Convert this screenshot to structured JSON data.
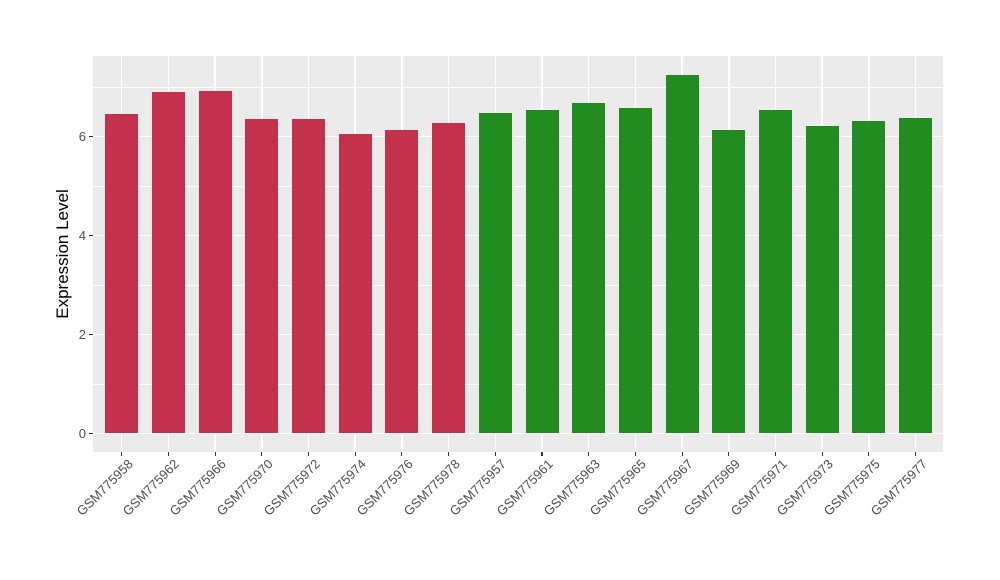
{
  "figure": {
    "background": "#FFFFFF",
    "panel_background": "#EBEBEB",
    "grid_color": "#FFFFFF",
    "axis_text_color": "#4D4D4D",
    "axis_title_color": "#000000",
    "tick_mark_color": "#333333"
  },
  "chart_data": {
    "type": "bar",
    "title": "",
    "xlabel": "",
    "ylabel": "Expression Level",
    "ylim": [
      0,
      7.64
    ],
    "yticks": [
      0,
      2,
      4,
      6
    ],
    "yticks_minor": [
      1,
      3,
      5,
      7
    ],
    "grid": "major and minor white gridlines on gray panel",
    "legend_position": "none",
    "bar_colors": {
      "red_group": "#C3314C",
      "green_group": "#238C20"
    },
    "bars": [
      {
        "label": "GSM775958",
        "value": 6.45,
        "color": "#C3314C"
      },
      {
        "label": "GSM775962",
        "value": 6.9,
        "color": "#C3314C"
      },
      {
        "label": "GSM775966",
        "value": 6.92,
        "color": "#C3314C"
      },
      {
        "label": "GSM775970",
        "value": 6.36,
        "color": "#C3314C"
      },
      {
        "label": "GSM775972",
        "value": 6.36,
        "color": "#C3314C"
      },
      {
        "label": "GSM775974",
        "value": 6.06,
        "color": "#C3314C"
      },
      {
        "label": "GSM775976",
        "value": 6.14,
        "color": "#C3314C"
      },
      {
        "label": "GSM775978",
        "value": 6.27,
        "color": "#C3314C"
      },
      {
        "label": "GSM775957",
        "value": 6.48,
        "color": "#238C20"
      },
      {
        "label": "GSM775961",
        "value": 6.54,
        "color": "#238C20"
      },
      {
        "label": "GSM775963",
        "value": 6.67,
        "color": "#238C20"
      },
      {
        "label": "GSM775965",
        "value": 6.58,
        "color": "#238C20"
      },
      {
        "label": "GSM775967",
        "value": 7.24,
        "color": "#238C20"
      },
      {
        "label": "GSM775969",
        "value": 6.13,
        "color": "#238C20"
      },
      {
        "label": "GSM775971",
        "value": 6.53,
        "color": "#238C20"
      },
      {
        "label": "GSM775973",
        "value": 6.21,
        "color": "#238C20"
      },
      {
        "label": "GSM775975",
        "value": 6.31,
        "color": "#238C20"
      },
      {
        "label": "GSM775977",
        "value": 6.38,
        "color": "#238C20"
      }
    ]
  }
}
